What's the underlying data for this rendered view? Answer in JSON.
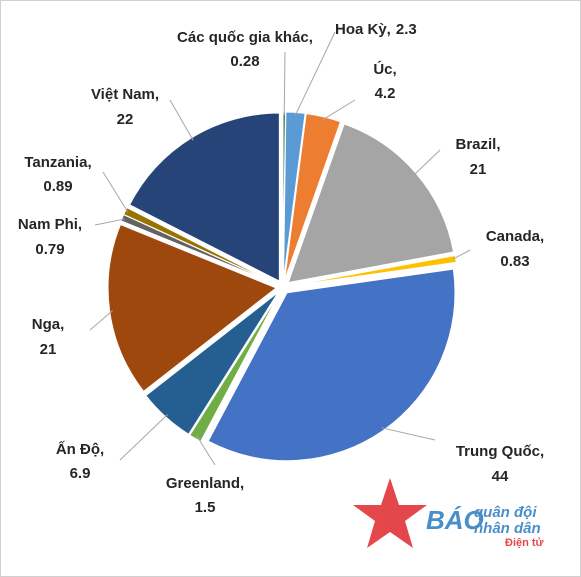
{
  "chart_data": {
    "type": "pie",
    "categories": [
      "Các quốc gia khác,",
      "Hoa Kỳ,",
      "Úc,",
      "Brazil,",
      "Canada,",
      "Trung Quốc,",
      "Greenland,",
      "Ấn Độ,",
      "Nga,",
      "Nam Phi,",
      "Tanzania,",
      "Việt Nam,"
    ],
    "values": [
      0.28,
      2.3,
      4.2,
      21,
      0.83,
      44,
      1.5,
      6.9,
      21,
      0.79,
      0.89,
      22
    ],
    "colors": [
      "#2e6b3a",
      "#5b9bd5",
      "#ed7d31",
      "#a5a5a5",
      "#ffc000",
      "#4472c4",
      "#70ad47",
      "#255e91",
      "#9e480e",
      "#636363",
      "#997300",
      "#264478"
    ]
  },
  "watermark": {
    "brand": "BÁO",
    "line1": "quân đội",
    "line2": "nhân dân",
    "line3": "Điện tử"
  }
}
